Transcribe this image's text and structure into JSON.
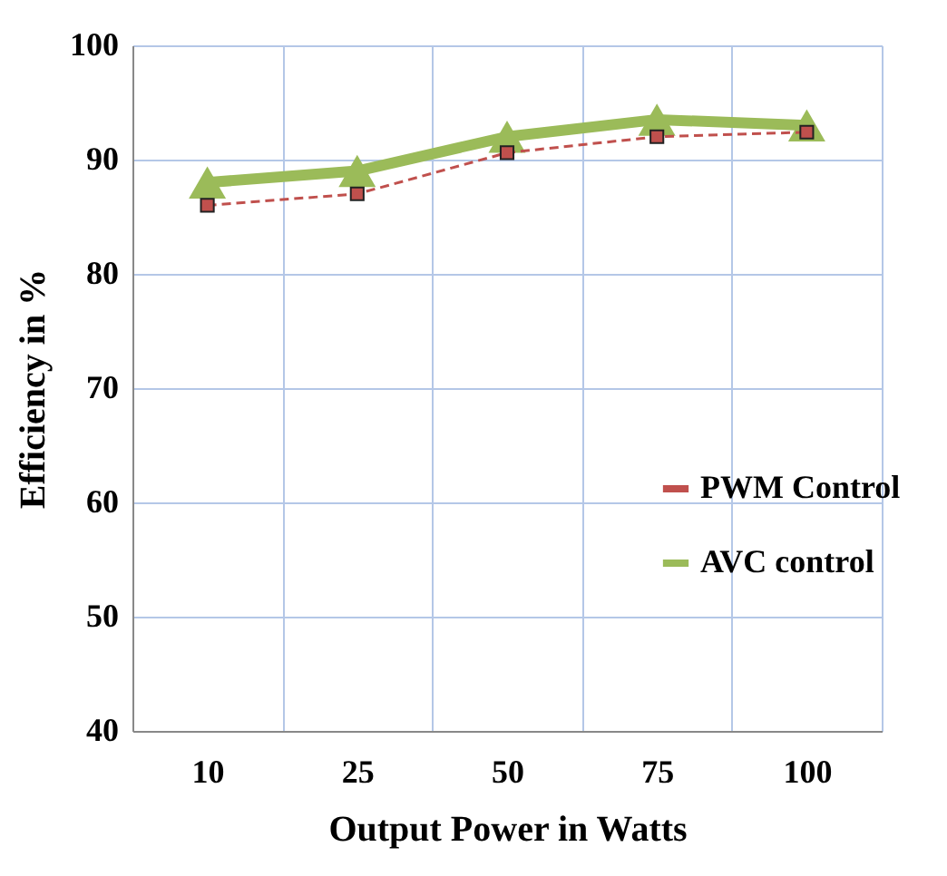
{
  "chart_data": {
    "type": "line",
    "xlabel": "Output Power in Watts",
    "ylabel": "Efficiency in %",
    "categories": [
      "10",
      "25",
      "50",
      "75",
      "100"
    ],
    "series": [
      {
        "name": "PWM Control",
        "color": "#c0504d",
        "values": [
          86,
          87,
          90.6,
          92,
          92.4
        ],
        "marker": "square",
        "line_style": "dashed"
      },
      {
        "name": "AVC control",
        "color": "#9bbb59",
        "values": [
          88,
          89,
          92,
          93.5,
          93
        ],
        "marker": "triangle",
        "line_style": "solid"
      }
    ],
    "ylim": [
      40,
      100
    ],
    "yticks": [
      40,
      50,
      60,
      70,
      80,
      90,
      100
    ],
    "grid": true,
    "legend": "right"
  }
}
